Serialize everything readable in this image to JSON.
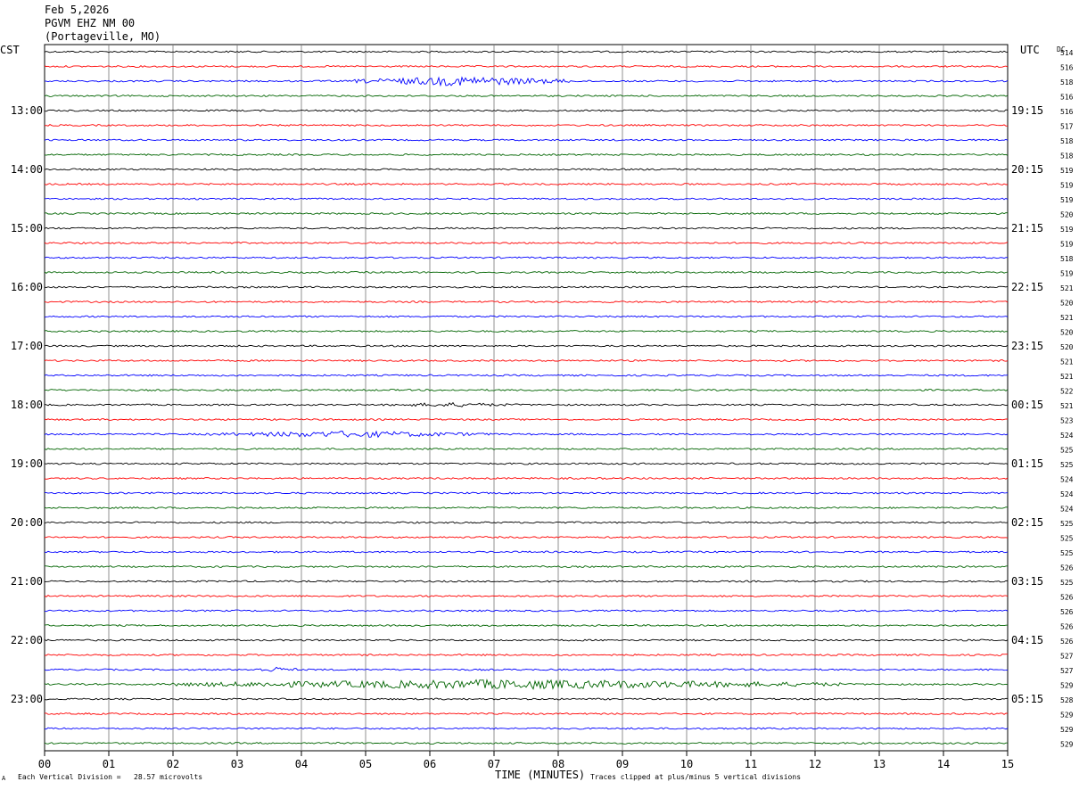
{
  "header": {
    "date": "Feb 5,2026",
    "station": "PGVM EHZ NM 00",
    "location": "(Portageville, MO)"
  },
  "left_tz": "CST",
  "right_tz": "UTC",
  "dc_label": "DC",
  "colors": [
    "#000000",
    "#ff0000",
    "#0000ff",
    "#006400"
  ],
  "chart_data": {
    "type": "line",
    "xlabel": "TIME (MINUTES)",
    "xlim": [
      0,
      15
    ],
    "x_ticks": [
      "00",
      "01",
      "02",
      "03",
      "04",
      "05",
      "06",
      "07",
      "08",
      "09",
      "10",
      "11",
      "12",
      "13",
      "14",
      "15"
    ],
    "row_count": 48,
    "left_hour_labels": [
      "13:00",
      "14:00",
      "15:00",
      "16:00",
      "17:00",
      "18:00",
      "19:00",
      "20:00",
      "21:00",
      "22:00",
      "23:00"
    ],
    "right_hour_labels": [
      "19:15",
      "20:15",
      "21:15",
      "22:15",
      "23:15",
      "00:15",
      "01:15",
      "02:15",
      "03:15",
      "04:15",
      "05:15"
    ],
    "dc_values": [
      "514",
      "516",
      "518",
      "516",
      "516",
      "517",
      "518",
      "518",
      "519",
      "519",
      "519",
      "520",
      "519",
      "519",
      "518",
      "519",
      "521",
      "520",
      "521",
      "520",
      "520",
      "521",
      "521",
      "522",
      "521",
      "523",
      "524",
      "525",
      "525",
      "524",
      "524",
      "524",
      "525",
      "525",
      "525",
      "526",
      "525",
      "526",
      "526",
      "526",
      "526",
      "527",
      "527",
      "529",
      "528",
      "529",
      "529",
      "529"
    ],
    "events": [
      {
        "row": 2,
        "start_min": 4.8,
        "end_min": 8.2,
        "amp": 1.3
      },
      {
        "row": 26,
        "start_min": 2.5,
        "end_min": 7.0,
        "amp": 0.9
      },
      {
        "row": 24,
        "start_min": 5.2,
        "end_min": 7.5,
        "amp": 0.6
      },
      {
        "row": 42,
        "start_min": 3.2,
        "end_min": 4.0,
        "amp": 0.7
      },
      {
        "row": 43,
        "start_min": 2.0,
        "end_min": 12.4,
        "amp": 1.3
      }
    ]
  },
  "footer": {
    "left": "Each Vertical Division =   28.57 microvolts",
    "right": "Traces clipped at plus/minus 5 vertical divisions",
    "corner": "A"
  }
}
